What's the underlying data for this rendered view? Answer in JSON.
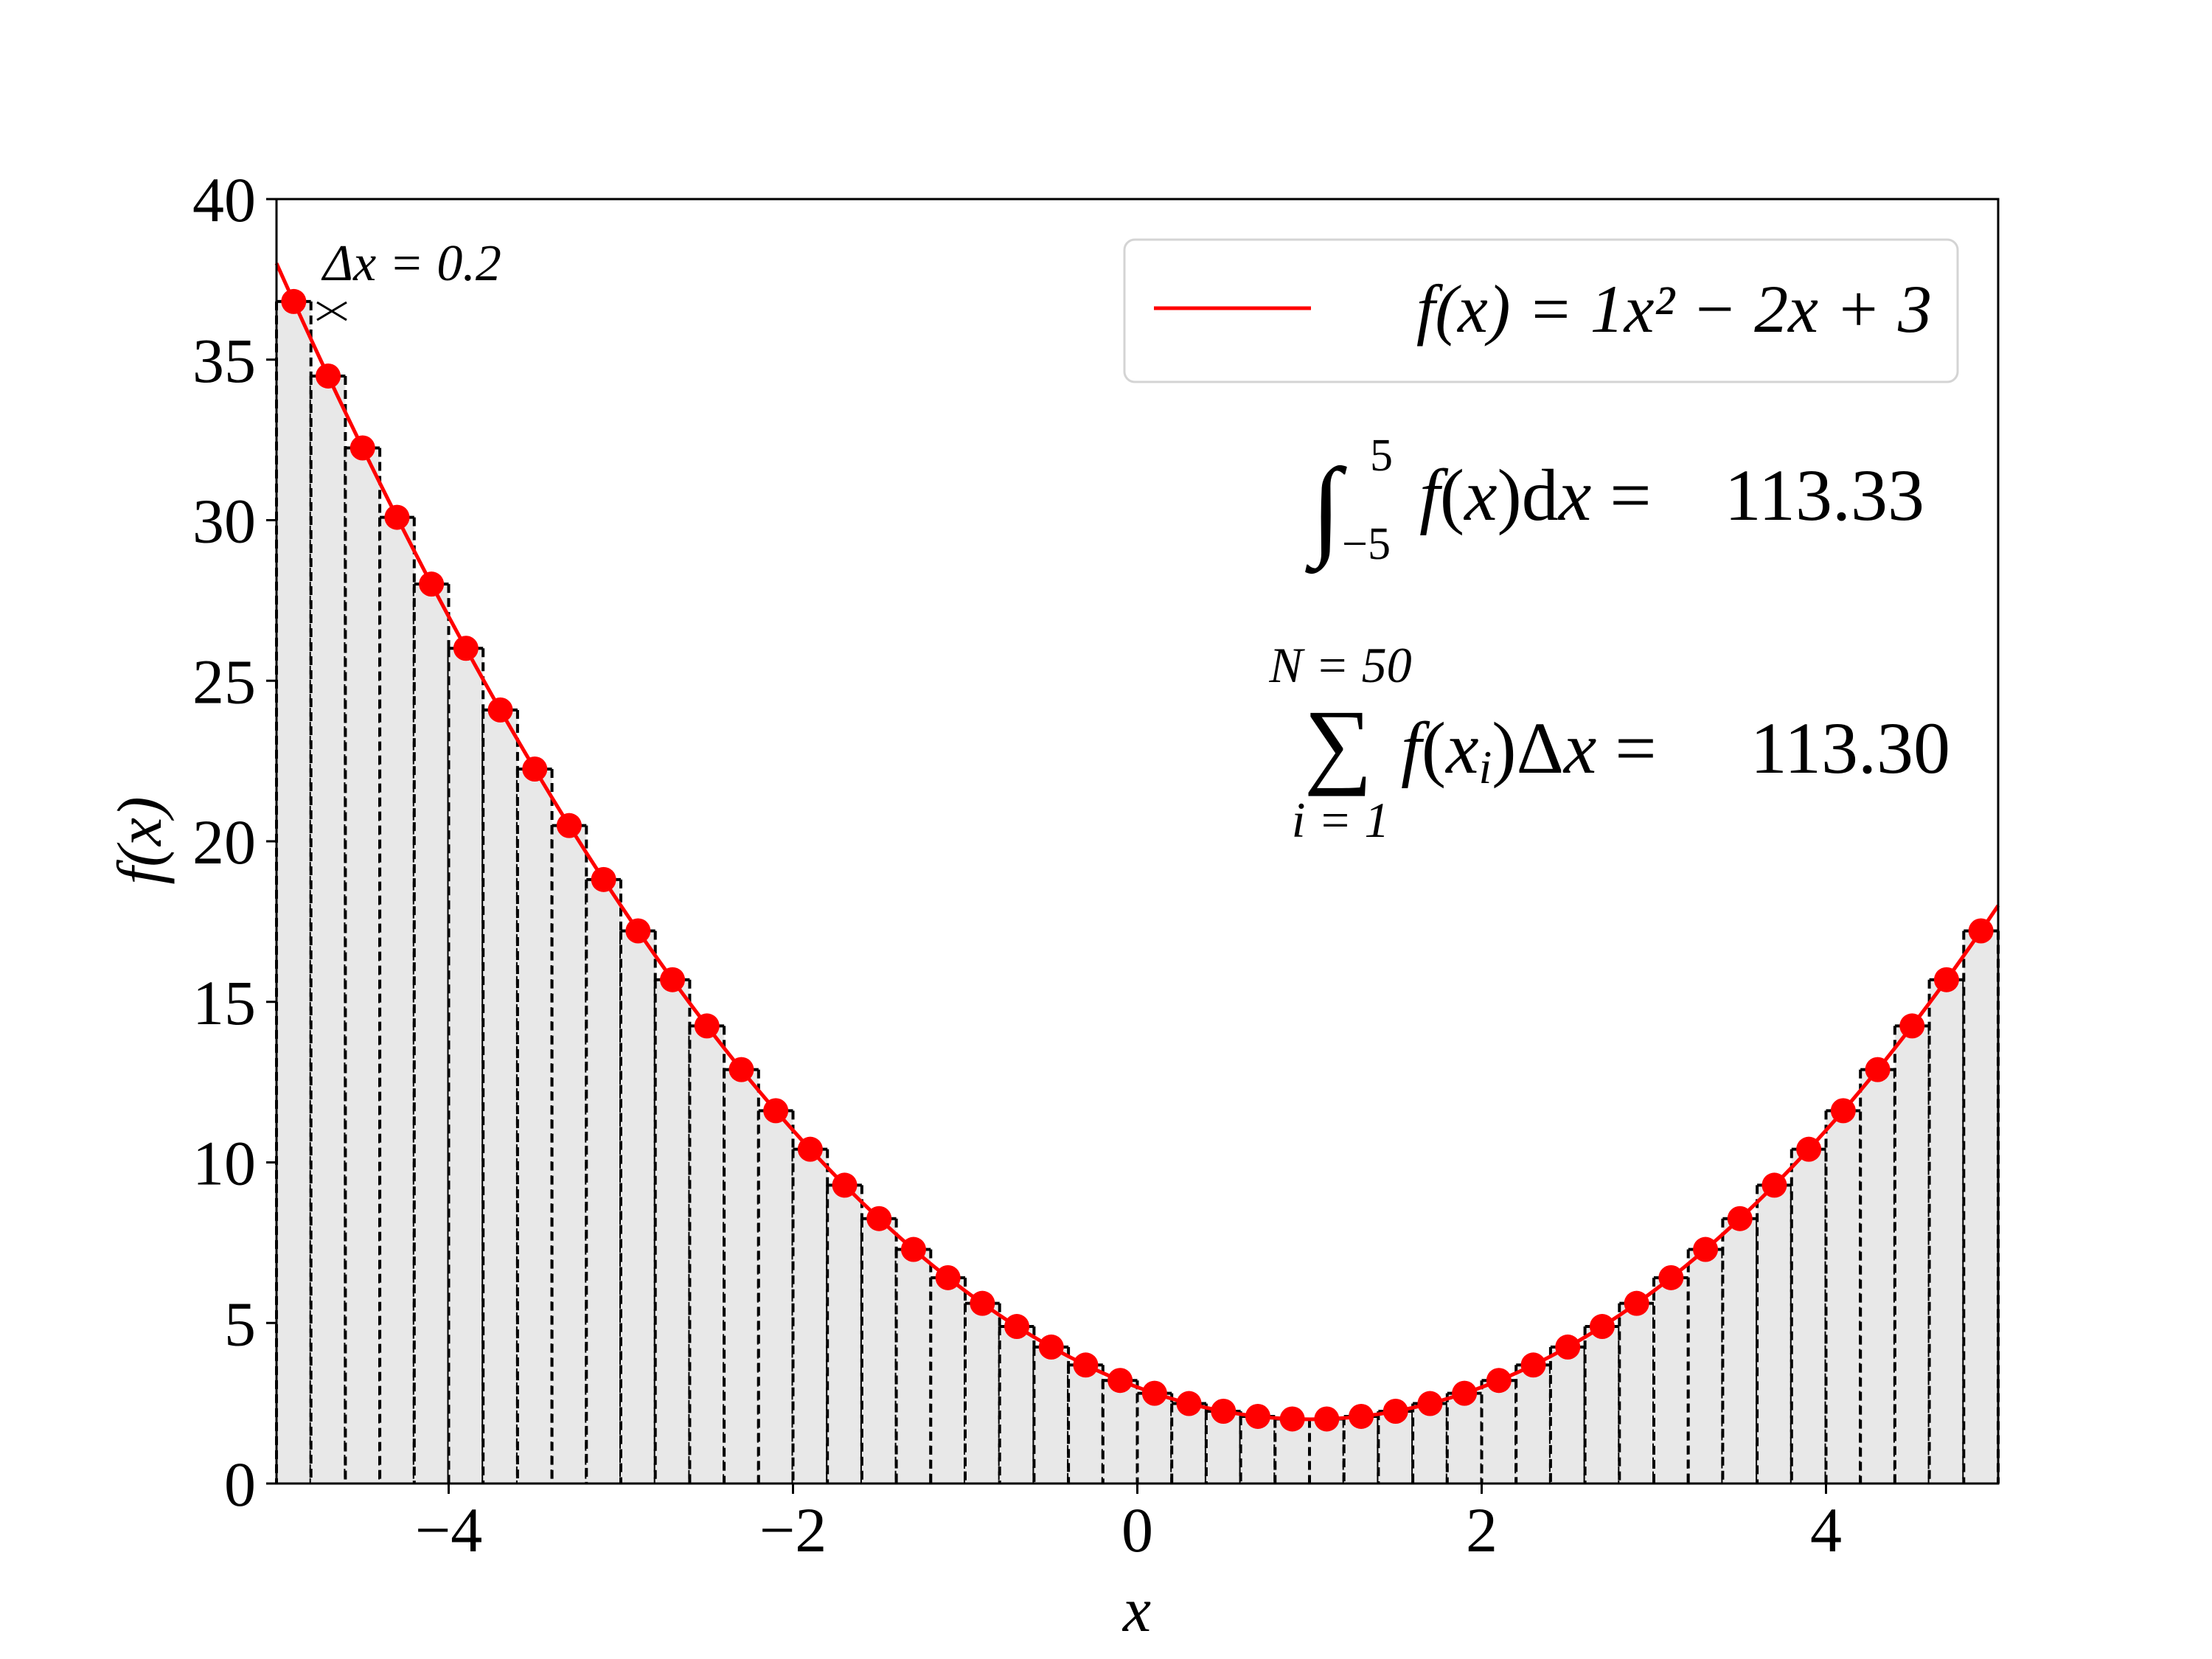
{
  "chart_data": {
    "type": "bar",
    "function_expression": "1x^2 - 2x + 3",
    "coefficients": {
      "a": 1,
      "b": -2,
      "c": 3
    },
    "xlim": [
      -5,
      5
    ],
    "ylim": [
      0,
      40
    ],
    "xticks": [
      -4,
      -2,
      0,
      2,
      4
    ],
    "xtick_labels": [
      "−4",
      "−2",
      "0",
      "2",
      "4"
    ],
    "yticks": [
      0,
      5,
      10,
      15,
      20,
      25,
      30,
      35,
      40
    ],
    "ytick_labels": [
      "0",
      "5",
      "10",
      "15",
      "20",
      "25",
      "30",
      "35",
      "40"
    ],
    "xlabel": "x",
    "ylabel": "f(x)",
    "dx": 0.2,
    "N": 50,
    "bars": {
      "midpoints": [
        -4.9,
        -4.7,
        -4.5,
        -4.3,
        -4.1,
        -3.9,
        -3.7,
        -3.5,
        -3.3,
        -3.1,
        -2.9,
        -2.7,
        -2.5,
        -2.3,
        -2.1,
        -1.9,
        -1.7,
        -1.5,
        -1.3,
        -1.1,
        -0.9,
        -0.7,
        -0.5,
        -0.3,
        -0.1,
        0.1,
        0.3,
        0.5,
        0.7,
        0.9,
        1.1,
        1.3,
        1.5,
        1.7,
        1.9,
        2.1,
        2.3,
        2.5,
        2.7,
        2.9,
        3.1,
        3.3,
        3.5,
        3.7,
        3.9,
        4.1,
        4.3,
        4.5,
        4.7,
        4.9
      ],
      "heights": [
        36.81,
        34.49,
        32.25,
        30.09,
        28.01,
        26.01,
        24.09,
        22.25,
        20.49,
        18.81,
        17.21,
        15.69,
        14.25,
        12.89,
        11.61,
        10.41,
        9.29,
        8.25,
        7.29,
        6.41,
        5.61,
        4.89,
        4.25,
        3.69,
        3.21,
        2.81,
        2.49,
        2.25,
        2.09,
        2.01,
        2.01,
        2.09,
        2.25,
        2.49,
        2.81,
        3.21,
        3.69,
        4.25,
        4.89,
        5.61,
        6.41,
        7.29,
        8.25,
        9.29,
        10.41,
        11.61,
        12.89,
        14.25,
        15.69,
        17.21
      ]
    },
    "legend": {
      "placement": "top-right",
      "line_label": "f(x) = 1x² − 2x + 3"
    },
    "annotations": {
      "dx_label": "Δx = 0.2",
      "integral_value": "113.33",
      "integral_lower": "−5",
      "integral_upper": "5",
      "sum_value": "113.30",
      "sum_upper": "N = 50",
      "sum_lower": "i = 1"
    },
    "colors": {
      "curve": "#ff0000",
      "bar_fill": "#e8e8e8",
      "bar_edge": "#000000"
    }
  }
}
